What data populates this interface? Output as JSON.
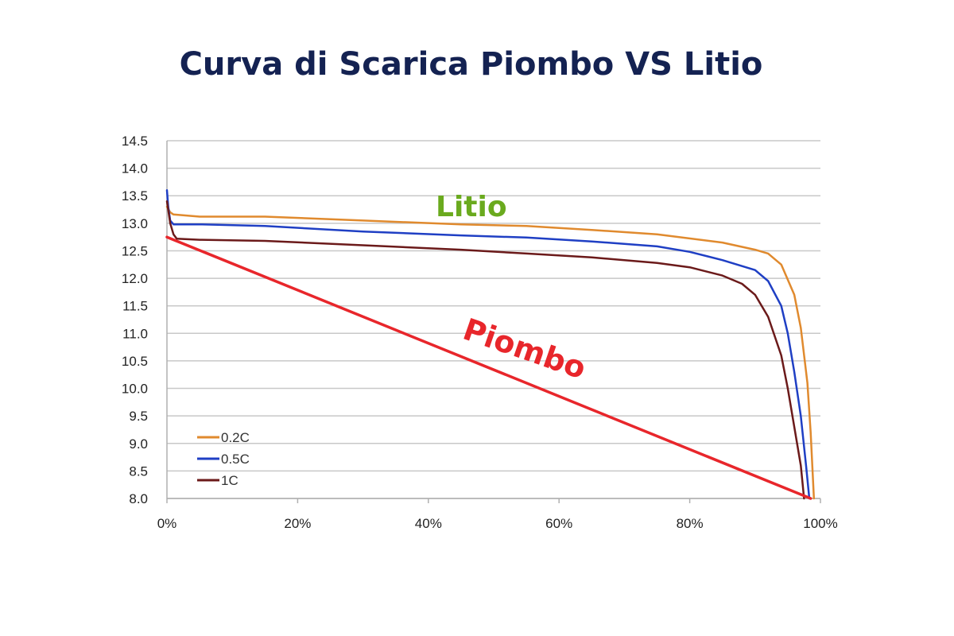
{
  "title": "Curva di Scarica Piombo VS Litio",
  "chart_data": {
    "type": "line",
    "title": "Curva di Scarica Piombo VS Litio",
    "xlabel": "",
    "ylabel": "",
    "xlim": [
      0,
      100
    ],
    "ylim": [
      8.0,
      14.5
    ],
    "grid": true,
    "legend_position": "bottom-left",
    "x_tick_labels": [
      "0%",
      "20%",
      "40%",
      "60%",
      "80%",
      "100%"
    ],
    "x_ticks": [
      0,
      20,
      40,
      60,
      80,
      100
    ],
    "y_tick_labels": [
      "8.0",
      "8.5",
      "9.0",
      "9.5",
      "10.0",
      "10.5",
      "11.0",
      "11.5",
      "12.0",
      "12.5",
      "13.0",
      "13.5",
      "14.0",
      "14.5"
    ],
    "y_ticks": [
      8.0,
      8.5,
      9.0,
      9.5,
      10.0,
      10.5,
      11.0,
      11.5,
      12.0,
      12.5,
      13.0,
      13.5,
      14.0,
      14.5
    ],
    "annotations": [
      {
        "text": "Litio",
        "color": "#6aaa1e"
      },
      {
        "text": "Piombo",
        "color": "#e8262b"
      }
    ],
    "series": [
      {
        "name": "0.2C",
        "color": "#e08a2e",
        "legend": true,
        "points": [
          [
            0,
            13.3
          ],
          [
            0.5,
            13.2
          ],
          [
            1,
            13.16
          ],
          [
            5,
            13.12
          ],
          [
            15,
            13.12
          ],
          [
            30,
            13.05
          ],
          [
            45,
            12.98
          ],
          [
            55,
            12.95
          ],
          [
            65,
            12.88
          ],
          [
            75,
            12.8
          ],
          [
            85,
            12.65
          ],
          [
            90,
            12.52
          ],
          [
            92,
            12.45
          ],
          [
            94,
            12.25
          ],
          [
            96,
            11.7
          ],
          [
            97,
            11.1
          ],
          [
            98,
            10.1
          ],
          [
            98.5,
            9.2
          ],
          [
            99,
            8.0
          ]
        ]
      },
      {
        "name": "0.5C",
        "color": "#1f3fc4",
        "legend": true,
        "points": [
          [
            0,
            13.6
          ],
          [
            0.2,
            13.3
          ],
          [
            0.5,
            13.05
          ],
          [
            1,
            12.98
          ],
          [
            5,
            12.98
          ],
          [
            15,
            12.95
          ],
          [
            30,
            12.85
          ],
          [
            45,
            12.78
          ],
          [
            55,
            12.74
          ],
          [
            65,
            12.67
          ],
          [
            75,
            12.58
          ],
          [
            80,
            12.48
          ],
          [
            85,
            12.33
          ],
          [
            90,
            12.15
          ],
          [
            92,
            11.95
          ],
          [
            94,
            11.5
          ],
          [
            95,
            11.0
          ],
          [
            96,
            10.3
          ],
          [
            97,
            9.5
          ],
          [
            97.8,
            8.6
          ],
          [
            98.3,
            8.0
          ]
        ]
      },
      {
        "name": "1C",
        "color": "#6b1a1a",
        "legend": true,
        "points": [
          [
            0,
            13.4
          ],
          [
            0.5,
            13.0
          ],
          [
            1,
            12.8
          ],
          [
            1.5,
            12.72
          ],
          [
            5,
            12.7
          ],
          [
            15,
            12.68
          ],
          [
            30,
            12.6
          ],
          [
            45,
            12.52
          ],
          [
            55,
            12.45
          ],
          [
            65,
            12.38
          ],
          [
            75,
            12.28
          ],
          [
            80,
            12.2
          ],
          [
            85,
            12.05
          ],
          [
            88,
            11.9
          ],
          [
            90,
            11.7
          ],
          [
            92,
            11.3
          ],
          [
            94,
            10.6
          ],
          [
            95,
            10.0
          ],
          [
            96,
            9.3
          ],
          [
            97,
            8.6
          ],
          [
            97.5,
            8.0
          ]
        ]
      },
      {
        "name": "Piombo",
        "color": "#e8262b",
        "legend": false,
        "points": [
          [
            0,
            12.75
          ],
          [
            98.5,
            8.0
          ]
        ]
      }
    ]
  }
}
